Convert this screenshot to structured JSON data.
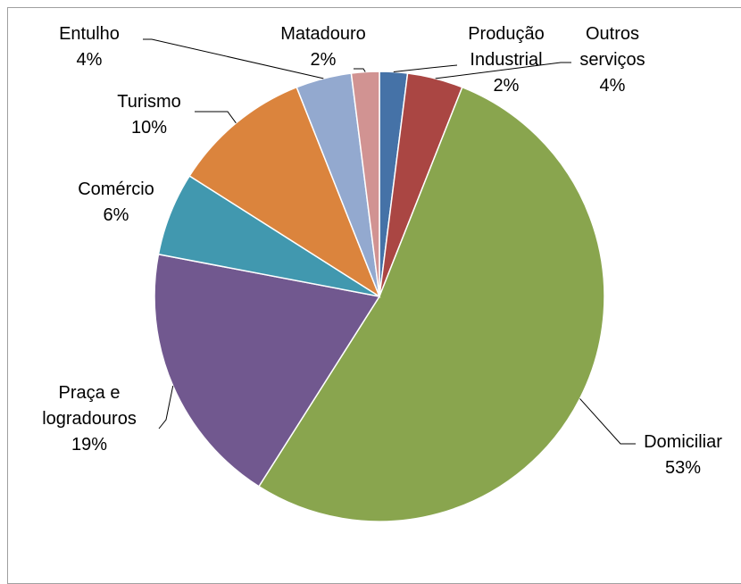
{
  "chart_data": {
    "type": "pie",
    "categories": [
      "Produção Industrial",
      "Outros serviços",
      "Domiciliar",
      "Praça e logradouros",
      "Comércio",
      "Turismo",
      "Entulho",
      "Matadouro"
    ],
    "values": [
      2,
      4,
      53,
      19,
      6,
      10,
      4,
      2
    ],
    "value_labels": [
      "2%",
      "4%",
      "53%",
      "19%",
      "6%",
      "10%",
      "4%",
      "2%"
    ],
    "colors": [
      "#4572a7",
      "#aa4643",
      "#89a54e",
      "#71588f",
      "#4198af",
      "#db843d",
      "#93a9cf",
      "#d19392"
    ]
  }
}
